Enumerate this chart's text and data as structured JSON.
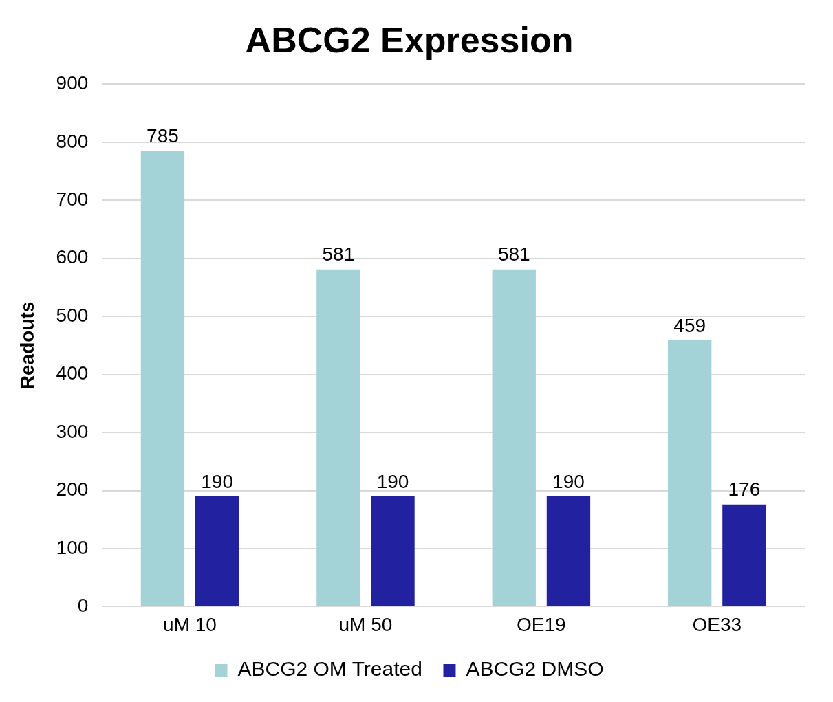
{
  "chart_data": {
    "type": "bar",
    "title": "ABCG2 Expression",
    "ylabel": "Readouts",
    "categories": [
      "uM 10",
      "uM 50",
      "OE19",
      "OE33"
    ],
    "series": [
      {
        "name": "ABCG2 OM Treated",
        "color": "#a3d3d6",
        "values": [
          785,
          581,
          581,
          459
        ]
      },
      {
        "name": "ABCG2 DMSO",
        "color": "#2222a0",
        "values": [
          190,
          190,
          190,
          176
        ]
      }
    ],
    "ylim": [
      0,
      900
    ],
    "yticks": [
      0,
      100,
      200,
      300,
      400,
      500,
      600,
      700,
      800,
      900
    ],
    "grid": "y",
    "legend": "bottom",
    "data_labels": true
  }
}
